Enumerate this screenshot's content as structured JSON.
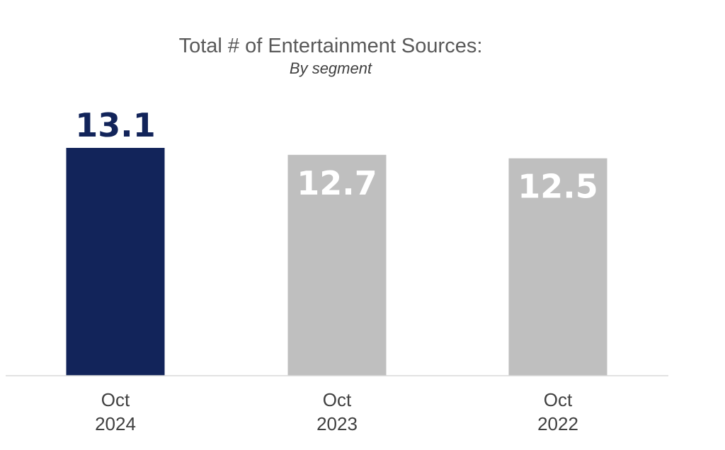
{
  "chart_data": {
    "type": "bar",
    "title": "Total # of Entertainment Sources:",
    "subtitle": "By segment",
    "categories": [
      [
        "Oct",
        "2024"
      ],
      [
        "Oct",
        "2023"
      ],
      [
        "Oct",
        "2022"
      ]
    ],
    "values": [
      13.1,
      12.7,
      12.5
    ],
    "value_labels": [
      "13.1",
      "12.7",
      "12.5"
    ],
    "colors": [
      "#12245a",
      "#bfbfbf",
      "#bfbfbf"
    ],
    "label_colors": [
      "#12245a",
      "#ffffff",
      "#ffffff"
    ],
    "label_positions": [
      "outside",
      "inside",
      "inside"
    ],
    "axis_color": "#d9d9d9",
    "ylim": [
      0,
      13.1
    ],
    "grid": false,
    "legend": "none"
  }
}
